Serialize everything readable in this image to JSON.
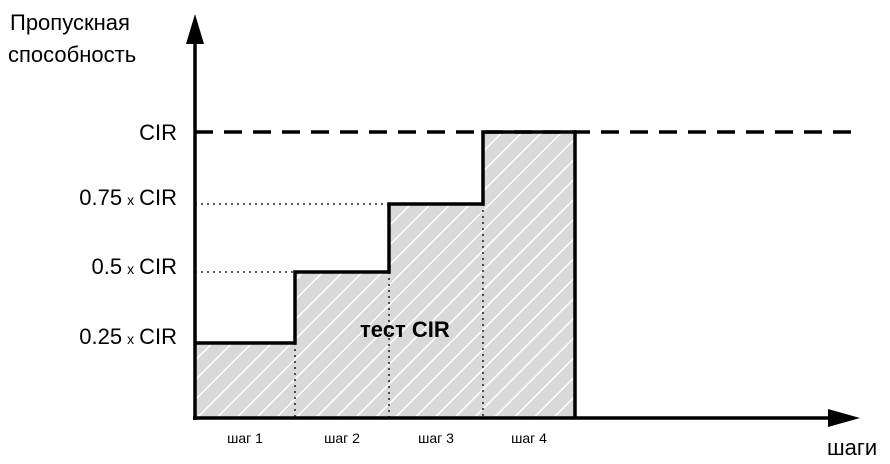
{
  "y_axis": {
    "title_line1": "Пропускная",
    "title_line2": "способность",
    "levels": [
      {
        "coef": "",
        "mult": "",
        "unit": "CIR",
        "value": 1.0
      },
      {
        "coef": "0.75",
        "mult": "x",
        "unit": "CIR",
        "value": 0.75
      },
      {
        "coef": "0.5",
        "mult": "x",
        "unit": "CIR",
        "value": 0.5
      },
      {
        "coef": "0.25",
        "mult": "x",
        "unit": "CIR",
        "value": 0.25
      }
    ]
  },
  "x_axis": {
    "title": "шаги",
    "steps": [
      "шаг 1",
      "шаг 2",
      "шаг 3",
      "шаг 4"
    ]
  },
  "area_label": "тест CIR",
  "step_levels": [
    0.25,
    0.5,
    0.75,
    1.0
  ],
  "colors": {
    "line": "#000000",
    "fill": "#d9d9d9",
    "hatch": "#ffffff"
  }
}
